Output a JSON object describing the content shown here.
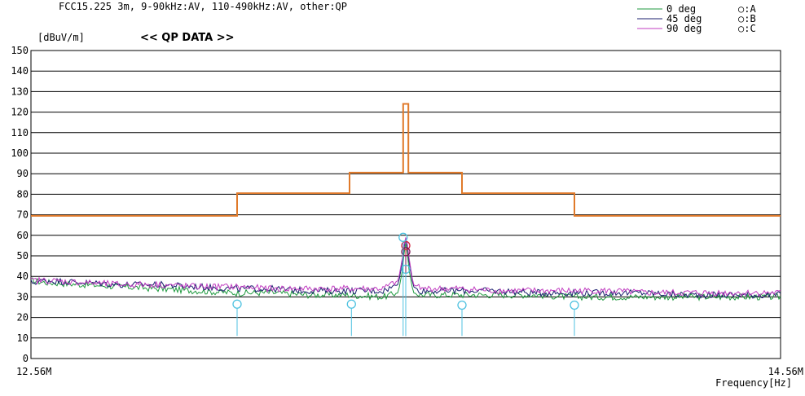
{
  "chart_data": {
    "type": "line",
    "title": "<< QP DATA >>",
    "subtitle": "FCC15.225 3m, 9-90kHz:AV, 110-490kHz:AV, other:QP",
    "ylabel": "[dBuV/m]",
    "xlabel": "Frequency[Hz]",
    "xlim": [
      12.56,
      14.56
    ],
    "ylim": [
      0,
      150
    ],
    "x_tick_labels": [
      "12.56M",
      "14.56M"
    ],
    "y_ticks": [
      0,
      10,
      20,
      30,
      40,
      50,
      60,
      70,
      80,
      90,
      100,
      110,
      120,
      130,
      140,
      150
    ],
    "grid": true,
    "legend": {
      "placement": "top-right",
      "series": [
        {
          "name": "0 deg",
          "color": "#1f9a3f"
        },
        {
          "name": "45 deg",
          "color": "#1b1f6e"
        },
        {
          "name": "90 deg",
          "color": "#c03cc0"
        }
      ],
      "markers": [
        {
          "name": "○:A",
          "color": "#d1203a"
        },
        {
          "name": "○:B",
          "color": "#7a1450"
        },
        {
          "name": "○:C",
          "color": "#4fc2e0"
        }
      ]
    },
    "limit_line": {
      "color": "#e07a2a",
      "points": [
        [
          12.56,
          69.5
        ],
        [
          13.11,
          69.5
        ],
        [
          13.11,
          80.5
        ],
        [
          13.41,
          80.5
        ],
        [
          13.41,
          90.5
        ],
        [
          13.553,
          90.5
        ],
        [
          13.553,
          124
        ],
        [
          13.567,
          124
        ],
        [
          13.567,
          90.5
        ],
        [
          13.71,
          90.5
        ],
        [
          13.71,
          80.5
        ],
        [
          14.01,
          80.5
        ],
        [
          14.01,
          69.5
        ],
        [
          14.56,
          69.5
        ]
      ]
    },
    "series": [
      {
        "name": "0 deg",
        "color": "#1f9a3f",
        "points": [
          [
            12.56,
            38
          ],
          [
            12.6,
            37
          ],
          [
            12.7,
            36
          ],
          [
            12.8,
            35
          ],
          [
            12.9,
            34
          ],
          [
            13.0,
            33
          ],
          [
            13.1,
            32
          ],
          [
            13.2,
            32
          ],
          [
            13.3,
            31
          ],
          [
            13.4,
            31
          ],
          [
            13.5,
            30
          ],
          [
            13.54,
            32
          ],
          [
            13.552,
            44
          ],
          [
            13.558,
            56
          ],
          [
            13.562,
            56
          ],
          [
            13.568,
            44
          ],
          [
            13.58,
            32
          ],
          [
            13.6,
            31
          ],
          [
            13.7,
            31
          ],
          [
            13.8,
            31
          ],
          [
            13.9,
            31
          ],
          [
            14.0,
            30
          ],
          [
            14.1,
            30
          ],
          [
            14.2,
            30
          ],
          [
            14.3,
            30
          ],
          [
            14.4,
            30
          ],
          [
            14.5,
            30
          ],
          [
            14.56,
            30
          ]
        ]
      },
      {
        "name": "45 deg",
        "color": "#1b1f6e",
        "points": [
          [
            12.56,
            37
          ],
          [
            12.6,
            38
          ],
          [
            12.7,
            37
          ],
          [
            12.8,
            36
          ],
          [
            12.9,
            36
          ],
          [
            13.0,
            35
          ],
          [
            13.1,
            34
          ],
          [
            13.2,
            34
          ],
          [
            13.3,
            33
          ],
          [
            13.4,
            33
          ],
          [
            13.5,
            33
          ],
          [
            13.54,
            36
          ],
          [
            13.552,
            48
          ],
          [
            13.558,
            58
          ],
          [
            13.562,
            58
          ],
          [
            13.568,
            48
          ],
          [
            13.58,
            35
          ],
          [
            13.6,
            33
          ],
          [
            13.7,
            33
          ],
          [
            13.8,
            33
          ],
          [
            13.9,
            32
          ],
          [
            14.0,
            32
          ],
          [
            14.1,
            32
          ],
          [
            14.2,
            32
          ],
          [
            14.3,
            31
          ],
          [
            14.4,
            31
          ],
          [
            14.5,
            31
          ],
          [
            14.56,
            31
          ]
        ]
      },
      {
        "name": "90 deg",
        "color": "#c03cc0",
        "points": [
          [
            12.56,
            38
          ],
          [
            12.6,
            38
          ],
          [
            12.7,
            37
          ],
          [
            12.8,
            36
          ],
          [
            12.9,
            36
          ],
          [
            13.0,
            35
          ],
          [
            13.1,
            35
          ],
          [
            13.2,
            34
          ],
          [
            13.3,
            34
          ],
          [
            13.4,
            34
          ],
          [
            13.5,
            34
          ],
          [
            13.54,
            38
          ],
          [
            13.552,
            50
          ],
          [
            13.558,
            59
          ],
          [
            13.562,
            59
          ],
          [
            13.568,
            50
          ],
          [
            13.58,
            36
          ],
          [
            13.6,
            34
          ],
          [
            13.7,
            34
          ],
          [
            13.8,
            33
          ],
          [
            13.9,
            33
          ],
          [
            14.0,
            33
          ],
          [
            14.1,
            33
          ],
          [
            14.2,
            32
          ],
          [
            14.3,
            32
          ],
          [
            14.4,
            32
          ],
          [
            14.5,
            32
          ],
          [
            14.56,
            32
          ]
        ]
      }
    ],
    "markers": [
      {
        "label": "A",
        "color": "#d1203a",
        "x": 13.56,
        "y": 55,
        "stem": true
      },
      {
        "label": "B",
        "color": "#7a1450",
        "x": 13.56,
        "y": 52,
        "stem": true
      },
      {
        "label": "C",
        "color": "#4fc2e0",
        "x": 13.11,
        "y": 26.5,
        "stem": true
      },
      {
        "label": "C",
        "color": "#4fc2e0",
        "x": 13.415,
        "y": 26.5,
        "stem": true
      },
      {
        "label": "C",
        "color": "#4fc2e0",
        "x": 13.553,
        "y": 59,
        "stem": true
      },
      {
        "label": "C",
        "color": "#4fc2e0",
        "x": 13.56,
        "y": 43.5,
        "stem": true
      },
      {
        "label": "C",
        "color": "#4fc2e0",
        "x": 13.71,
        "y": 26,
        "stem": true
      },
      {
        "label": "C",
        "color": "#4fc2e0",
        "x": 14.01,
        "y": 26,
        "stem": true
      }
    ]
  }
}
